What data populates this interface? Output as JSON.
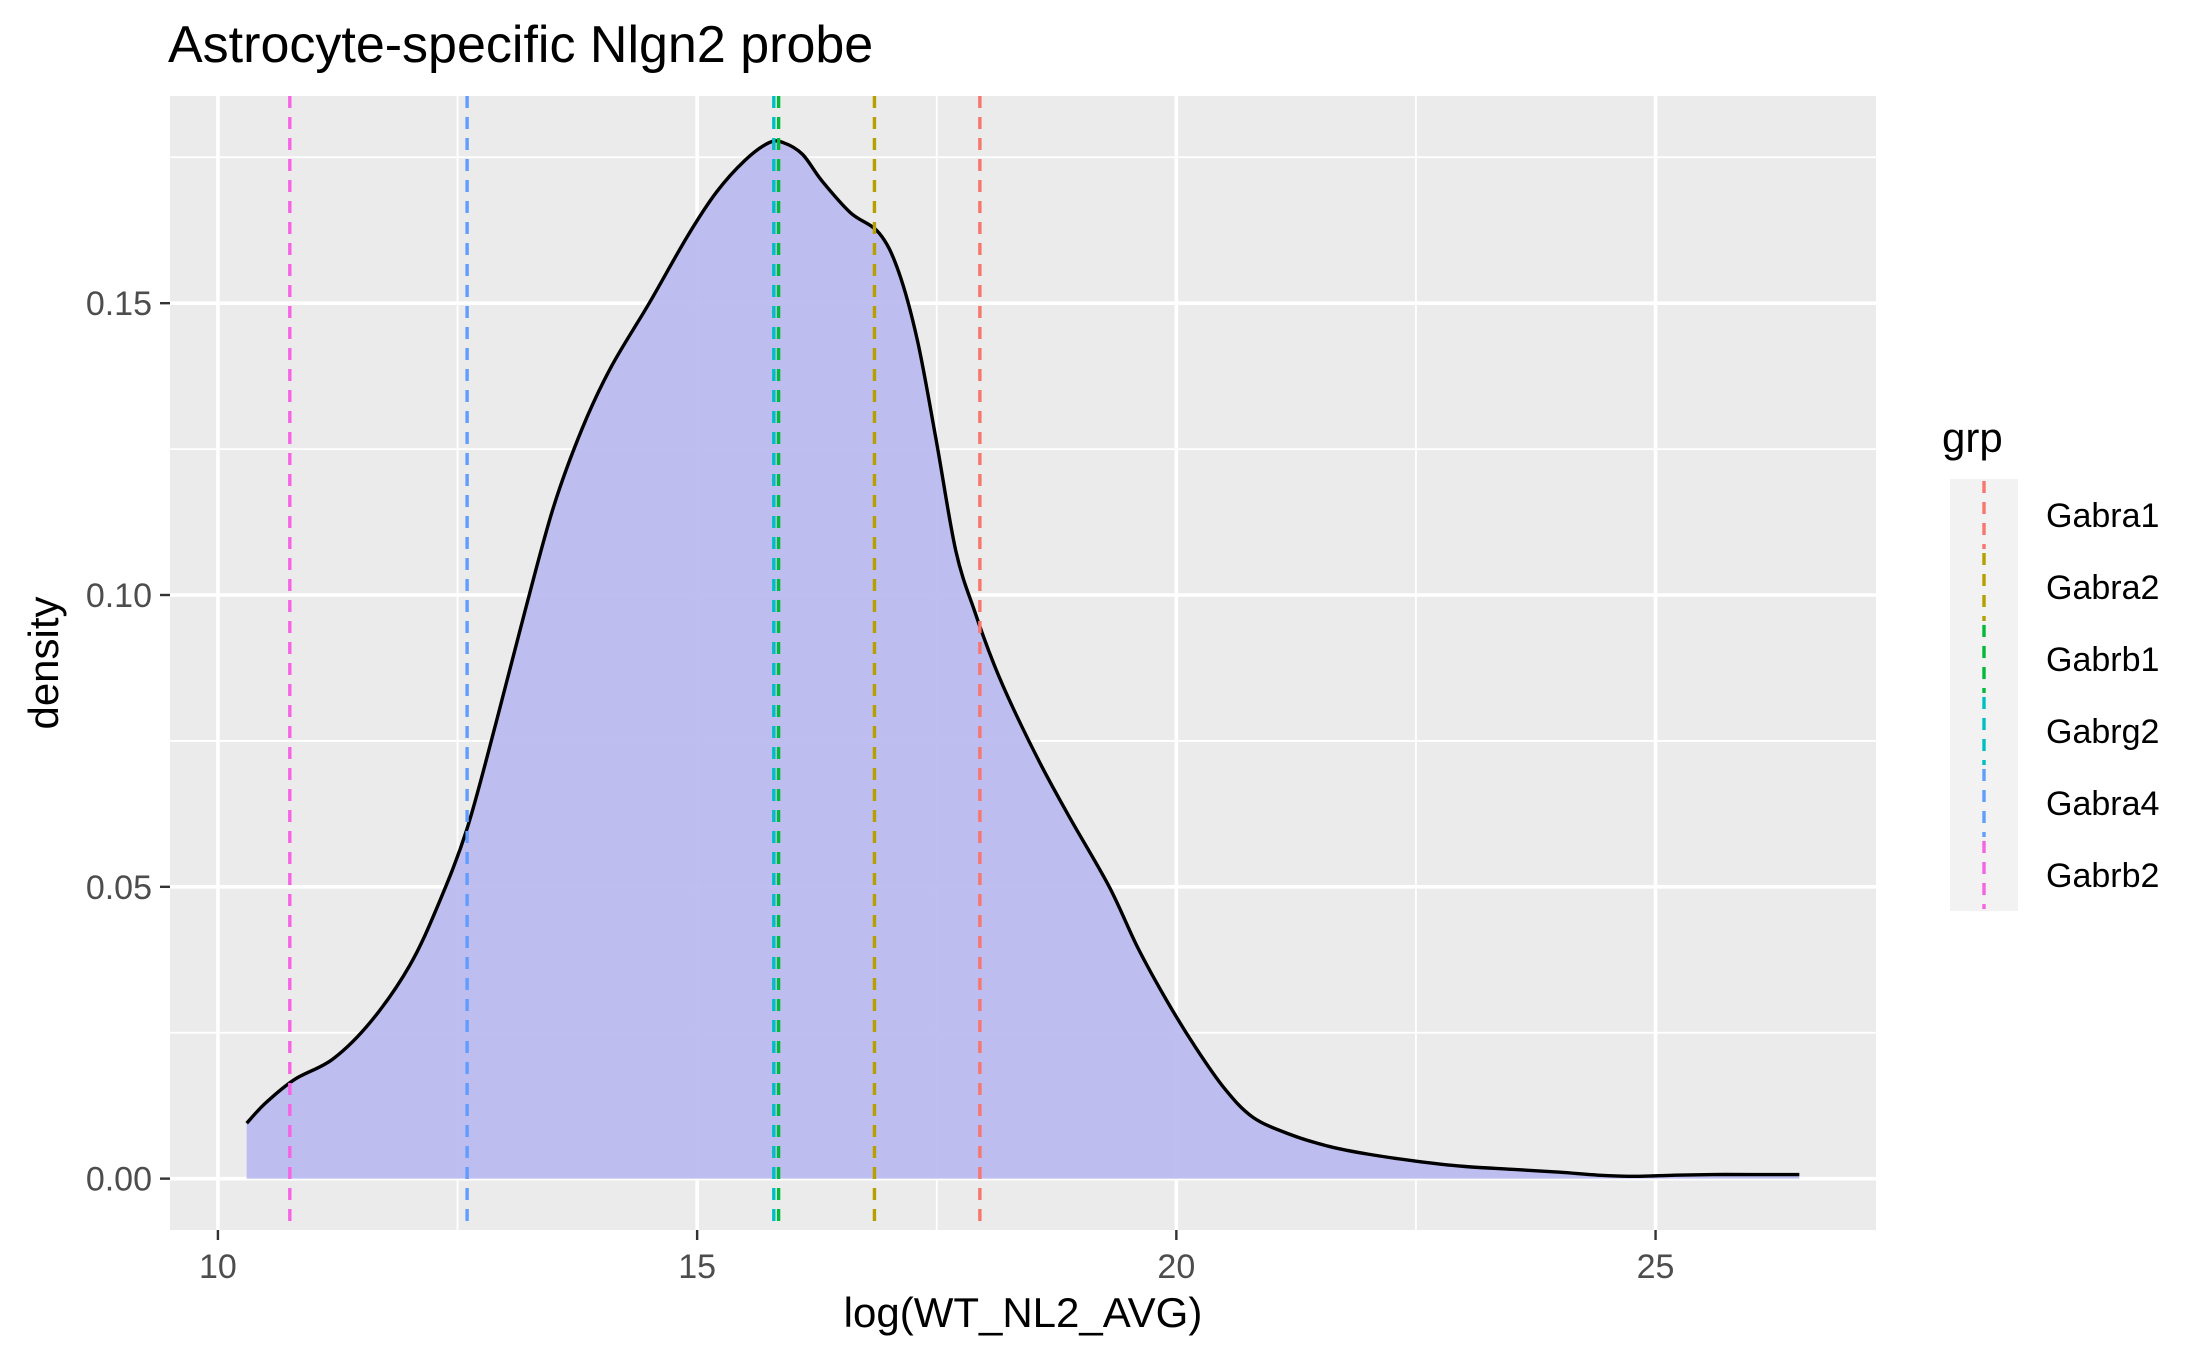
{
  "chart_data": {
    "type": "area",
    "title": "Astrocyte-specific Nlgn2 probe",
    "xlabel": "log(WT_NL2_AVG)",
    "ylabel": "density",
    "xlim": [
      9.5,
      27.3
    ],
    "ylim": [
      -0.0088,
      0.1855
    ],
    "x_ticks": [
      10,
      15,
      20,
      25
    ],
    "x_tick_labels": [
      "10",
      "15",
      "20",
      "25"
    ],
    "y_ticks": [
      0.0,
      0.05,
      0.1,
      0.15
    ],
    "y_tick_labels": [
      "0.00",
      "0.05",
      "0.10",
      "0.15"
    ],
    "grid": true,
    "fill_color": "#bbbbef",
    "line_color": "#000000",
    "density": {
      "x": [
        10.3,
        10.5,
        10.8,
        11.2,
        11.6,
        12.0,
        12.3,
        12.6,
        12.9,
        13.2,
        13.5,
        13.8,
        14.1,
        14.5,
        14.9,
        15.2,
        15.5,
        15.75,
        15.9,
        16.1,
        16.3,
        16.6,
        16.9,
        17.1,
        17.3,
        17.5,
        17.7,
        17.9,
        18.1,
        18.3,
        18.6,
        18.9,
        19.3,
        19.6,
        19.9,
        20.2,
        20.5,
        20.8,
        21.2,
        21.6,
        22.0,
        22.5,
        23.0,
        23.5,
        24.0,
        24.4,
        24.8,
        25.2,
        25.6,
        26.0,
        26.5
      ],
      "y": [
        0.0095,
        0.013,
        0.017,
        0.0205,
        0.027,
        0.0365,
        0.047,
        0.06,
        0.078,
        0.097,
        0.115,
        0.1285,
        0.139,
        0.15,
        0.1615,
        0.169,
        0.1745,
        0.1775,
        0.1775,
        0.1755,
        0.171,
        0.1655,
        0.162,
        0.1555,
        0.1435,
        0.126,
        0.1075,
        0.097,
        0.088,
        0.0805,
        0.0705,
        0.0615,
        0.05,
        0.0395,
        0.0305,
        0.0225,
        0.0155,
        0.0105,
        0.0075,
        0.0055,
        0.0042,
        0.003,
        0.0021,
        0.0016,
        0.0011,
        0.0006,
        0.0004,
        0.0006,
        0.0007,
        0.0007,
        0.0007
      ]
    },
    "vlines": [
      {
        "name": "Gabra1",
        "x": 17.95,
        "color": "#F8766D"
      },
      {
        "name": "Gabra2",
        "x": 16.85,
        "color": "#B79F00"
      },
      {
        "name": "Gabrb1",
        "x": 15.85,
        "color": "#00BA38"
      },
      {
        "name": "Gabrg2",
        "x": 15.8,
        "color": "#00BFC4"
      },
      {
        "name": "Gabra4",
        "x": 12.6,
        "color": "#619CFF"
      },
      {
        "name": "Gabrb2",
        "x": 10.75,
        "color": "#F564E3"
      }
    ],
    "legend": {
      "title": "grp",
      "position": "right",
      "entries": [
        "Gabra1",
        "Gabra2",
        "Gabrb1",
        "Gabrg2",
        "Gabra4",
        "Gabrb2"
      ]
    }
  }
}
